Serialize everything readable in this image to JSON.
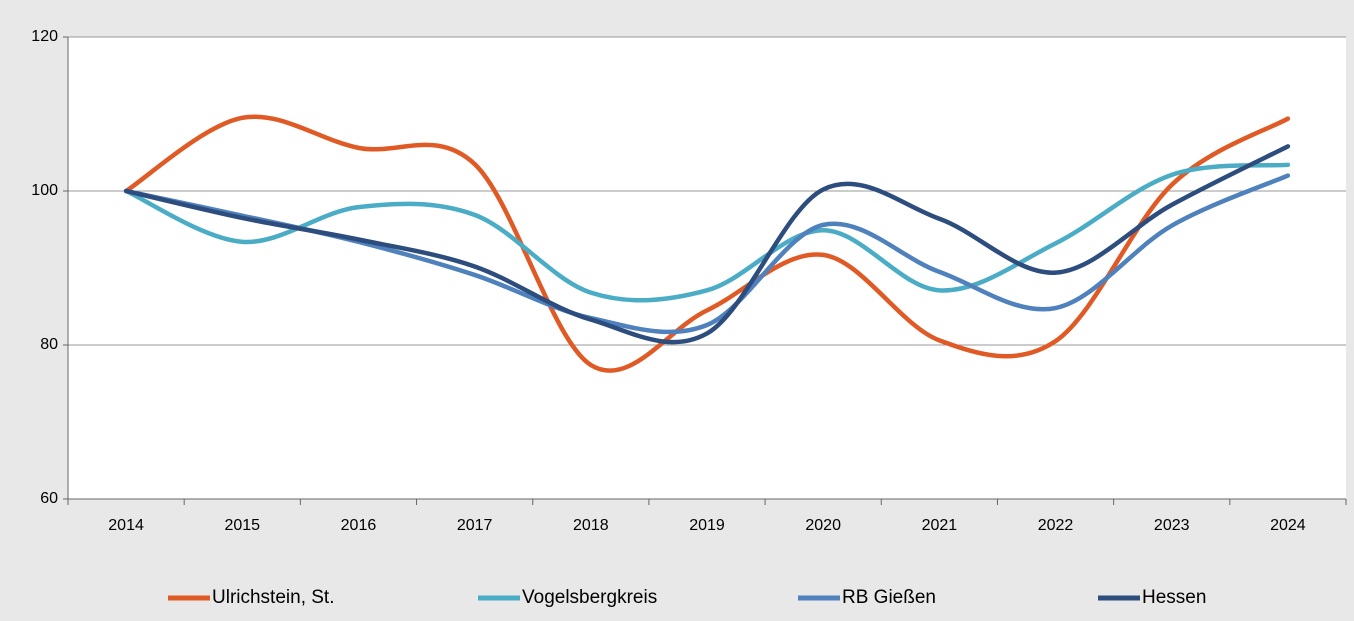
{
  "chart_data": {
    "type": "line",
    "categories": [
      "2014",
      "2015",
      "2016",
      "2017",
      "2018",
      "2019",
      "2020",
      "2021",
      "2022",
      "2023",
      "2024"
    ],
    "series": [
      {
        "name": "Ulrichstein, St.",
        "color": "#e05a25",
        "values": [
          100,
          109.5,
          105.6,
          103.5,
          77.4,
          84.5,
          91.7,
          80.6,
          80.5,
          100.8,
          109.4
        ]
      },
      {
        "name": "Vogelsbergkreis",
        "color": "#4bacc6",
        "values": [
          100,
          93.4,
          97.9,
          96.9,
          86.8,
          87.1,
          94.9,
          87.1,
          93.2,
          102.1,
          103.4
        ]
      },
      {
        "name": "RB Gießen",
        "color": "#4f81bd",
        "values": [
          100,
          96.8,
          93.4,
          89.1,
          83.5,
          82.6,
          95.6,
          89.5,
          84.8,
          95.5,
          102
        ]
      },
      {
        "name": "Hessen",
        "color": "#2c4d7e",
        "values": [
          100,
          96.5,
          93.7,
          90.2,
          83.3,
          81.5,
          100.2,
          96.4,
          89.4,
          98.2,
          105.8
        ]
      }
    ],
    "ylim": [
      60,
      120
    ],
    "yticks": [
      60,
      80,
      100,
      120
    ],
    "grid": true,
    "legend": "bottom"
  }
}
